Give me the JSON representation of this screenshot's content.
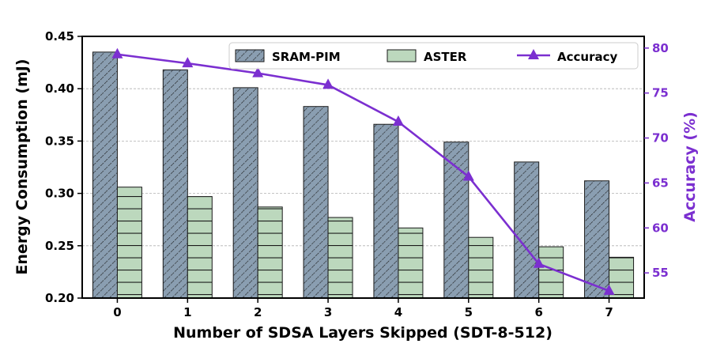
{
  "chart_data": {
    "type": "bar",
    "title": "",
    "xlabel": "Number of SDSA Layers Skipped (SDT-8-512)",
    "ylabel": "Energy Consumption (mJ)",
    "y2label": "Accuracy (%)",
    "categories": [
      "0",
      "1",
      "2",
      "3",
      "4",
      "5",
      "6",
      "7"
    ],
    "ylim": [
      0.2,
      0.45
    ],
    "yticks": [
      "0.20",
      "0.25",
      "0.30",
      "0.35",
      "0.40",
      "0.45"
    ],
    "y2lim": [
      52.2,
      81.3
    ],
    "y2ticks": [
      "55",
      "60",
      "65",
      "70",
      "75",
      "80"
    ],
    "grid": true,
    "legend_position": "top-right",
    "series": [
      {
        "name": "SRAM-PIM",
        "kind": "bar",
        "color": "#8a9eb1",
        "pattern": "hatch-diagonal",
        "values": [
          0.435,
          0.418,
          0.401,
          0.383,
          0.366,
          0.349,
          0.33,
          0.312
        ]
      },
      {
        "name": "ASTER",
        "kind": "bar",
        "color": "#bcd8bd",
        "pattern": "hatch-horizontal",
        "values": [
          0.306,
          0.297,
          0.287,
          0.277,
          0.267,
          0.258,
          0.249,
          0.239
        ]
      },
      {
        "name": "Accuracy",
        "kind": "line",
        "axis": "right",
        "color": "#7b2fd0",
        "marker": "triangle",
        "values": [
          79.3,
          78.3,
          77.2,
          75.9,
          71.8,
          65.7,
          56.0,
          53.0
        ]
      }
    ],
    "colors": {
      "axis": "#000000",
      "grid": "#b0b0b0",
      "accuracy_axis": "#7b2fd0"
    }
  }
}
